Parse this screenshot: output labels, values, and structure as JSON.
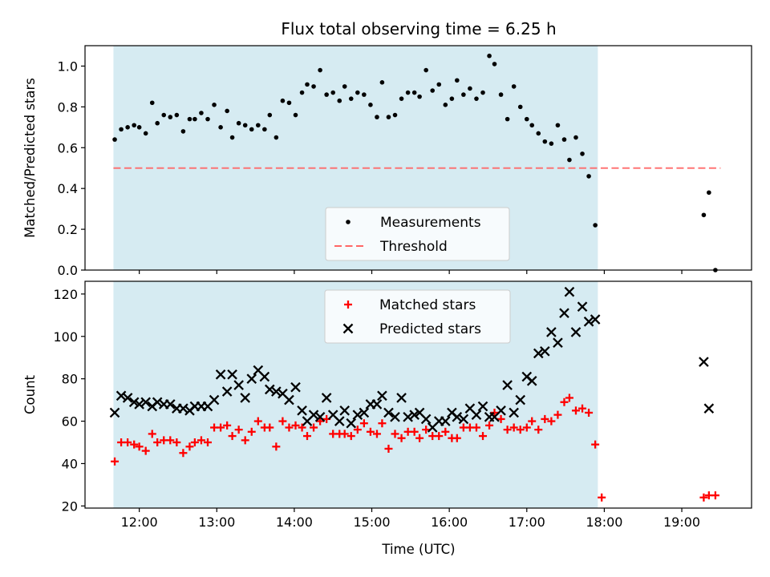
{
  "figure": {
    "title": "Flux total observing time = 6.25 h",
    "xlabel": "Time (UTC)",
    "x_tick_labels": [
      "12:00",
      "13:00",
      "14:00",
      "15:00",
      "16:00",
      "17:00",
      "18:00",
      "19:00"
    ]
  },
  "colors": {
    "shade": "#add8e6",
    "measurement": "#000000",
    "threshold": "#ff6666",
    "matched": "#ff0000",
    "predicted": "#000000"
  },
  "chart_data": [
    {
      "type": "scatter",
      "ylabel": "Matched/Predicted stars",
      "xlim": [
        "11:18",
        "19:54"
      ],
      "ylim": [
        0,
        1.1
      ],
      "y_ticks": [
        0.0,
        0.2,
        0.4,
        0.6,
        0.8,
        1.0
      ],
      "y_tick_labels": [
        "0.0",
        "0.2",
        "0.4",
        "0.6",
        "0.8",
        "1.0"
      ],
      "grid": false,
      "legend_position": "lower center",
      "shaded_interval": [
        "11:40",
        "17:55"
      ],
      "threshold": {
        "name": "Threshold",
        "y": 0.5,
        "x_start": "11:40",
        "x_end": "19:30",
        "style": "dashed"
      },
      "series": [
        {
          "name": "Measurements",
          "marker": "dot",
          "points": [
            [
              "11:41",
              0.64
            ],
            [
              "11:46",
              0.69
            ],
            [
              "11:51",
              0.7
            ],
            [
              "11:56",
              0.71
            ],
            [
              "12:00",
              0.7
            ],
            [
              "12:05",
              0.67
            ],
            [
              "12:10",
              0.82
            ],
            [
              "12:14",
              0.72
            ],
            [
              "12:19",
              0.76
            ],
            [
              "12:24",
              0.75
            ],
            [
              "12:29",
              0.76
            ],
            [
              "12:34",
              0.68
            ],
            [
              "12:39",
              0.74
            ],
            [
              "12:43",
              0.74
            ],
            [
              "12:48",
              0.77
            ],
            [
              "12:53",
              0.74
            ],
            [
              "12:58",
              0.81
            ],
            [
              "13:03",
              0.7
            ],
            [
              "13:08",
              0.78
            ],
            [
              "13:12",
              0.65
            ],
            [
              "13:17",
              0.72
            ],
            [
              "13:22",
              0.71
            ],
            [
              "13:27",
              0.69
            ],
            [
              "13:32",
              0.71
            ],
            [
              "13:37",
              0.69
            ],
            [
              "13:41",
              0.76
            ],
            [
              "13:46",
              0.65
            ],
            [
              "13:51",
              0.83
            ],
            [
              "13:56",
              0.82
            ],
            [
              "14:01",
              0.76
            ],
            [
              "14:06",
              0.87
            ],
            [
              "14:10",
              0.91
            ],
            [
              "14:15",
              0.9
            ],
            [
              "14:20",
              0.98
            ],
            [
              "14:25",
              0.86
            ],
            [
              "14:30",
              0.87
            ],
            [
              "14:35",
              0.83
            ],
            [
              "14:39",
              0.9
            ],
            [
              "14:44",
              0.84
            ],
            [
              "14:49",
              0.87
            ],
            [
              "14:54",
              0.86
            ],
            [
              "14:59",
              0.81
            ],
            [
              "15:04",
              0.75
            ],
            [
              "15:08",
              0.92
            ],
            [
              "15:13",
              0.75
            ],
            [
              "15:18",
              0.76
            ],
            [
              "15:23",
              0.84
            ],
            [
              "15:28",
              0.87
            ],
            [
              "15:33",
              0.87
            ],
            [
              "15:37",
              0.85
            ],
            [
              "15:42",
              0.98
            ],
            [
              "15:47",
              0.88
            ],
            [
              "15:52",
              0.91
            ],
            [
              "15:57",
              0.81
            ],
            [
              "16:02",
              0.84
            ],
            [
              "16:06",
              0.93
            ],
            [
              "16:11",
              0.86
            ],
            [
              "16:16",
              0.89
            ],
            [
              "16:21",
              0.84
            ],
            [
              "16:26",
              0.87
            ],
            [
              "16:31",
              1.05
            ],
            [
              "16:35",
              1.01
            ],
            [
              "16:40",
              0.86
            ],
            [
              "16:45",
              0.74
            ],
            [
              "16:50",
              0.9
            ],
            [
              "16:55",
              0.8
            ],
            [
              "17:00",
              0.74
            ],
            [
              "17:04",
              0.71
            ],
            [
              "17:09",
              0.67
            ],
            [
              "17:14",
              0.63
            ],
            [
              "17:19",
              0.62
            ],
            [
              "17:24",
              0.71
            ],
            [
              "17:29",
              0.64
            ],
            [
              "17:33",
              0.54
            ],
            [
              "17:38",
              0.65
            ],
            [
              "17:43",
              0.57
            ],
            [
              "17:48",
              0.46
            ],
            [
              "17:53",
              0.22
            ],
            [
              "19:17",
              0.27
            ],
            [
              "19:21",
              0.38
            ],
            [
              "19:26",
              0.0
            ]
          ]
        }
      ]
    },
    {
      "type": "scatter",
      "ylabel": "Count",
      "xlim": [
        "11:18",
        "19:54"
      ],
      "ylim": [
        19,
        126
      ],
      "y_ticks": [
        20,
        40,
        60,
        80,
        100,
        120
      ],
      "y_tick_labels": [
        "20",
        "40",
        "60",
        "80",
        "100",
        "120"
      ],
      "grid": false,
      "legend_position": "upper center",
      "shaded_interval": [
        "11:40",
        "17:55"
      ],
      "series": [
        {
          "name": "Matched stars",
          "marker": "plus",
          "points": [
            [
              "11:41",
              41
            ],
            [
              "11:46",
              50
            ],
            [
              "11:51",
              50
            ],
            [
              "11:56",
              49
            ],
            [
              "12:00",
              48
            ],
            [
              "12:05",
              46
            ],
            [
              "12:10",
              54
            ],
            [
              "12:14",
              50
            ],
            [
              "12:19",
              51
            ],
            [
              "12:24",
              51
            ],
            [
              "12:29",
              50
            ],
            [
              "12:34",
              45
            ],
            [
              "12:39",
              48
            ],
            [
              "12:43",
              50
            ],
            [
              "12:48",
              51
            ],
            [
              "12:53",
              50
            ],
            [
              "12:58",
              57
            ],
            [
              "13:03",
              57
            ],
            [
              "13:08",
              58
            ],
            [
              "13:12",
              53
            ],
            [
              "13:17",
              56
            ],
            [
              "13:22",
              51
            ],
            [
              "13:27",
              55
            ],
            [
              "13:32",
              60
            ],
            [
              "13:37",
              57
            ],
            [
              "13:41",
              57
            ],
            [
              "13:46",
              48
            ],
            [
              "13:51",
              60
            ],
            [
              "13:56",
              57
            ],
            [
              "14:01",
              58
            ],
            [
              "14:06",
              57
            ],
            [
              "14:10",
              53
            ],
            [
              "14:15",
              57
            ],
            [
              "14:20",
              60
            ],
            [
              "14:25",
              61
            ],
            [
              "14:30",
              54
            ],
            [
              "14:35",
              54
            ],
            [
              "14:39",
              54
            ],
            [
              "14:44",
              53
            ],
            [
              "14:49",
              56
            ],
            [
              "14:54",
              59
            ],
            [
              "14:59",
              55
            ],
            [
              "15:04",
              54
            ],
            [
              "15:08",
              59
            ],
            [
              "15:13",
              47
            ],
            [
              "15:18",
              54
            ],
            [
              "15:23",
              52
            ],
            [
              "15:28",
              55
            ],
            [
              "15:33",
              55
            ],
            [
              "15:37",
              52
            ],
            [
              "15:42",
              56
            ],
            [
              "15:47",
              53
            ],
            [
              "15:52",
              53
            ],
            [
              "15:57",
              55
            ],
            [
              "16:02",
              52
            ],
            [
              "16:06",
              52
            ],
            [
              "16:11",
              57
            ],
            [
              "16:16",
              57
            ],
            [
              "16:21",
              57
            ],
            [
              "16:26",
              53
            ],
            [
              "16:31",
              58
            ],
            [
              "16:35",
              64
            ],
            [
              "16:40",
              61
            ],
            [
              "16:45",
              56
            ],
            [
              "16:50",
              57
            ],
            [
              "16:55",
              56
            ],
            [
              "17:00",
              57
            ],
            [
              "17:04",
              60
            ],
            [
              "17:09",
              56
            ],
            [
              "17:14",
              61
            ],
            [
              "17:19",
              60
            ],
            [
              "17:24",
              63
            ],
            [
              "17:29",
              69
            ],
            [
              "17:33",
              71
            ],
            [
              "17:38",
              65
            ],
            [
              "17:43",
              66
            ],
            [
              "17:48",
              64
            ],
            [
              "17:53",
              49
            ],
            [
              "17:58",
              24
            ],
            [
              "19:17",
              24
            ],
            [
              "19:21",
              25
            ],
            [
              "19:26",
              25
            ]
          ]
        },
        {
          "name": "Predicted stars",
          "marker": "x",
          "points": [
            [
              "11:41",
              64
            ],
            [
              "11:46",
              72
            ],
            [
              "11:51",
              71
            ],
            [
              "11:56",
              69
            ],
            [
              "12:00",
              68
            ],
            [
              "12:05",
              69
            ],
            [
              "12:10",
              67
            ],
            [
              "12:14",
              69
            ],
            [
              "12:19",
              68
            ],
            [
              "12:24",
              68
            ],
            [
              "12:29",
              66
            ],
            [
              "12:34",
              66
            ],
            [
              "12:39",
              65
            ],
            [
              "12:43",
              67
            ],
            [
              "12:48",
              67
            ],
            [
              "12:53",
              67
            ],
            [
              "12:58",
              70
            ],
            [
              "13:03",
              82
            ],
            [
              "13:08",
              74
            ],
            [
              "13:12",
              82
            ],
            [
              "13:17",
              77
            ],
            [
              "13:22",
              71
            ],
            [
              "13:27",
              80
            ],
            [
              "13:32",
              84
            ],
            [
              "13:37",
              81
            ],
            [
              "13:41",
              75
            ],
            [
              "13:46",
              74
            ],
            [
              "13:51",
              73
            ],
            [
              "13:56",
              70
            ],
            [
              "14:01",
              76
            ],
            [
              "14:06",
              65
            ],
            [
              "14:10",
              60
            ],
            [
              "14:15",
              63
            ],
            [
              "14:20",
              62
            ],
            [
              "14:25",
              71
            ],
            [
              "14:30",
              63
            ],
            [
              "14:35",
              60
            ],
            [
              "14:39",
              65
            ],
            [
              "14:44",
              59
            ],
            [
              "14:49",
              63
            ],
            [
              "14:54",
              64
            ],
            [
              "14:59",
              68
            ],
            [
              "15:04",
              68
            ],
            [
              "15:08",
              72
            ],
            [
              "15:13",
              64
            ],
            [
              "15:18",
              62
            ],
            [
              "15:23",
              71
            ],
            [
              "15:28",
              62
            ],
            [
              "15:33",
              63
            ],
            [
              "15:37",
              64
            ],
            [
              "15:42",
              61
            ],
            [
              "15:47",
              57
            ],
            [
              "15:52",
              60
            ],
            [
              "15:57",
              60
            ],
            [
              "16:02",
              64
            ],
            [
              "16:06",
              62
            ],
            [
              "16:11",
              61
            ],
            [
              "16:16",
              66
            ],
            [
              "16:21",
              63
            ],
            [
              "16:26",
              67
            ],
            [
              "16:31",
              62
            ],
            [
              "16:35",
              62
            ],
            [
              "16:40",
              65
            ],
            [
              "16:45",
              77
            ],
            [
              "16:50",
              64
            ],
            [
              "16:55",
              70
            ],
            [
              "17:00",
              81
            ],
            [
              "17:04",
              79
            ],
            [
              "17:09",
              92
            ],
            [
              "17:14",
              93
            ],
            [
              "17:19",
              102
            ],
            [
              "17:24",
              97
            ],
            [
              "17:29",
              111
            ],
            [
              "17:33",
              121
            ],
            [
              "17:38",
              102
            ],
            [
              "17:43",
              114
            ],
            [
              "17:48",
              107
            ],
            [
              "17:53",
              108
            ],
            [
              "19:17",
              88
            ],
            [
              "19:21",
              66
            ]
          ]
        }
      ]
    }
  ]
}
